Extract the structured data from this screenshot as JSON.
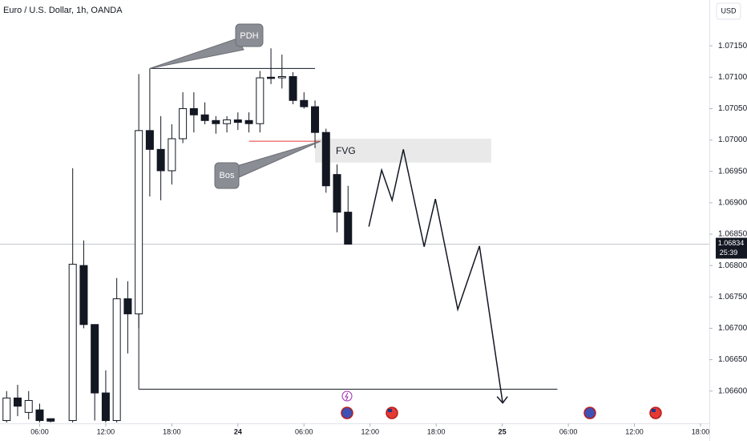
{
  "chart_data": {
    "type": "candlestick",
    "title": "Euro / U.S. Dollar, 1h, OANDA",
    "currency": "USD",
    "x": [
      3,
      4,
      5,
      6,
      7,
      9,
      10,
      11,
      12,
      13,
      14,
      15,
      16,
      17,
      18,
      19,
      20,
      21,
      22,
      23,
      24,
      25,
      26,
      27,
      28,
      29,
      30,
      31,
      32,
      33,
      34
    ],
    "open": [
      1.06553,
      1.06589,
      1.06566,
      1.0657,
      1.06556,
      1.06553,
      1.068,
      1.06706,
      1.06597,
      1.06553,
      1.06747,
      1.06723,
      1.07015,
      1.06985,
      1.06951,
      1.07002,
      1.0705,
      1.0704,
      1.07031,
      1.07026,
      1.07032,
      1.07031,
      1.07026,
      1.071,
      1.07099,
      1.07101,
      1.07063,
      1.07053,
      1.07012,
      1.06945,
      1.06885
    ],
    "high": [
      1.066,
      1.0661,
      1.066,
      1.0658,
      1.06556,
      1.06955,
      1.0684,
      1.06706,
      1.06633,
      1.0678,
      1.06775,
      1.07105,
      1.07114,
      1.07038,
      1.07025,
      1.07076,
      1.07076,
      1.0706,
      1.07038,
      1.07038,
      1.07044,
      1.07044,
      1.0711,
      1.07146,
      1.07136,
      1.07108,
      1.07076,
      1.07063,
      1.07018,
      1.06961,
      1.06927
    ],
    "low": [
      1.0655,
      1.0656,
      1.06555,
      1.0655,
      1.0655,
      1.0655,
      1.067,
      1.06553,
      1.0655,
      1.0655,
      1.0666,
      1.067,
      1.0691,
      1.06904,
      1.06929,
      1.06995,
      1.07012,
      1.07025,
      1.0701,
      1.07012,
      1.07016,
      1.07012,
      1.07012,
      1.07089,
      1.07082,
      1.07057,
      1.0705,
      1.06987,
      1.06916,
      1.06853,
      1.06834
    ],
    "close": [
      1.06589,
      1.06576,
      1.06585,
      1.06553,
      1.06552,
      1.06802,
      1.06706,
      1.06597,
      1.06553,
      1.06747,
      1.06723,
      1.07015,
      1.06985,
      1.06951,
      1.07002,
      1.0705,
      1.0704,
      1.07031,
      1.07026,
      1.07032,
      1.07028,
      1.07026,
      1.07099,
      1.07098,
      1.07101,
      1.07063,
      1.07053,
      1.07012,
      1.06927,
      1.06885,
      1.06834
    ],
    "xlim": [
      2.4,
      66.8
    ],
    "ylim": [
      1.06546,
      1.07223
    ],
    "xticks": [
      {
        "value": 6,
        "label": "06:00"
      },
      {
        "value": 12,
        "label": "12:00"
      },
      {
        "value": 18,
        "label": "18:00"
      },
      24,
      {
        "value": 30,
        "label": "06:00"
      },
      {
        "value": 36,
        "label": "12:00"
      },
      {
        "value": 42,
        "label": "18:00"
      },
      {
        "value": 48,
        "label": "25"
      },
      {
        "value": 54,
        "label": "06:00"
      },
      {
        "value": 60,
        "label": "12:00"
      },
      {
        "value": 66,
        "label": "18:00"
      }
    ],
    "yticks": [
      {
        "value": 1.0715,
        "label": "1.07150"
      },
      {
        "value": 1.071,
        "label": "1.07100"
      },
      {
        "value": 1.0705,
        "label": "1.07050"
      },
      {
        "value": 1.07,
        "label": "1.07000"
      },
      {
        "value": 1.0695,
        "label": "1.06950"
      },
      {
        "value": 1.069,
        "label": "1.06900"
      },
      {
        "value": 1.0685,
        "label": "1.06850"
      },
      {
        "value": 1.068,
        "label": "1.06800"
      },
      {
        "value": 1.0675,
        "label": "1.06750"
      },
      {
        "value": 1.067,
        "label": "1.06700"
      },
      {
        "value": 1.0665,
        "label": "1.06650"
      },
      {
        "value": 1.066,
        "label": "1.06600"
      }
    ],
    "last_price": {
      "value": 1.06834,
      "label": "1.06834"
    },
    "countdown": "25:39",
    "annotations": {
      "pdh": {
        "label": "PDH",
        "level": 1.07114,
        "x": [
          16,
          31
        ]
      },
      "bos": {
        "label": "Bos",
        "level": 1.06998,
        "x": [
          25,
          31.5
        ]
      },
      "fvg": {
        "label": "FVG",
        "top": 1.07002,
        "bottom": 1.06964,
        "x": [
          31,
          47
        ]
      },
      "target": {
        "level": 1.06603,
        "x": [
          15,
          53
        ]
      },
      "projection": {
        "x": [
          35.89,
          37.05,
          38.0,
          39.02,
          40.91,
          41.93,
          43.96,
          45.93,
          48.04
        ],
        "y": [
          1.06862,
          1.06952,
          1.06904,
          1.06985,
          1.0683,
          1.06906,
          1.0673,
          1.06831,
          1.06581
        ]
      }
    }
  }
}
